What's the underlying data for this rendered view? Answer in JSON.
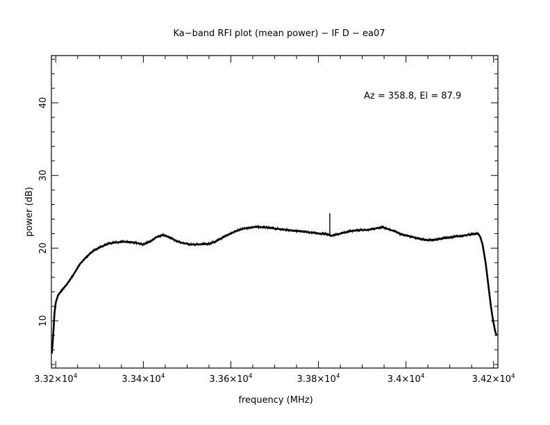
{
  "chart_data": {
    "type": "line",
    "title": "Ka−band RFI plot (mean power) − IF D − ea07",
    "xlabel": "frequency (MHz)",
    "ylabel": "power (dB)",
    "annotation": "Az = 358.8, El = 87.9",
    "xlim": [
      33190,
      34210
    ],
    "ylim": [
      3.5,
      46.5
    ],
    "x_ticks": [
      {
        "value": 33200,
        "mantissa": "3.32",
        "exp": "4"
      },
      {
        "value": 33400,
        "mantissa": "3.34",
        "exp": "4"
      },
      {
        "value": 33600,
        "mantissa": "3.36",
        "exp": "4"
      },
      {
        "value": 33800,
        "mantissa": "3.38",
        "exp": "4"
      },
      {
        "value": 34000,
        "mantissa": "3.4",
        "exp": "4"
      },
      {
        "value": 34200,
        "mantissa": "3.42",
        "exp": "4"
      }
    ],
    "x_tick_base": "×10",
    "y_ticks": [
      {
        "value": 10,
        "label": "10"
      },
      {
        "value": 20,
        "label": "20"
      },
      {
        "value": 30,
        "label": "30"
      },
      {
        "value": 40,
        "label": "40"
      }
    ],
    "series": [
      {
        "color": "#000000",
        "points": [
          [
            33191,
            5.5
          ],
          [
            33193,
            7.0
          ],
          [
            33195,
            9.0
          ],
          [
            33197,
            11.0
          ],
          [
            33200,
            12.5
          ],
          [
            33205,
            13.5
          ],
          [
            33215,
            14.3
          ],
          [
            33225,
            15.0
          ],
          [
            33240,
            16.3
          ],
          [
            33255,
            17.8
          ],
          [
            33270,
            18.8
          ],
          [
            33285,
            19.6
          ],
          [
            33300,
            20.1
          ],
          [
            33320,
            20.6
          ],
          [
            33340,
            20.8
          ],
          [
            33360,
            20.9
          ],
          [
            33380,
            20.8
          ],
          [
            33400,
            20.5
          ],
          [
            33415,
            20.9
          ],
          [
            33430,
            21.5
          ],
          [
            33445,
            21.8
          ],
          [
            33460,
            21.5
          ],
          [
            33475,
            21.0
          ],
          [
            33490,
            20.7
          ],
          [
            33510,
            20.5
          ],
          [
            33530,
            20.5
          ],
          [
            33550,
            20.6
          ],
          [
            33565,
            20.9
          ],
          [
            33580,
            21.4
          ],
          [
            33595,
            21.9
          ],
          [
            33610,
            22.3
          ],
          [
            33630,
            22.7
          ],
          [
            33650,
            22.9
          ],
          [
            33670,
            22.9
          ],
          [
            33700,
            22.7
          ],
          [
            33730,
            22.5
          ],
          [
            33760,
            22.3
          ],
          [
            33790,
            22.1
          ],
          [
            33805,
            22.0
          ],
          [
            33815,
            22.0
          ],
          [
            33825,
            21.8
          ],
          [
            33830,
            21.7
          ],
          [
            33850,
            22.0
          ],
          [
            33870,
            22.3
          ],
          [
            33890,
            22.5
          ],
          [
            33910,
            22.5
          ],
          [
            33930,
            22.7
          ],
          [
            33945,
            22.9
          ],
          [
            33960,
            22.6
          ],
          [
            33975,
            22.3
          ],
          [
            33990,
            21.9
          ],
          [
            34010,
            21.6
          ],
          [
            34030,
            21.3
          ],
          [
            34050,
            21.1
          ],
          [
            34070,
            21.2
          ],
          [
            34090,
            21.4
          ],
          [
            34110,
            21.6
          ],
          [
            34130,
            21.7
          ],
          [
            34150,
            21.9
          ],
          [
            34165,
            22.0
          ],
          [
            34170,
            21.5
          ],
          [
            34175,
            20.5
          ],
          [
            34182,
            18.0
          ],
          [
            34188,
            15.0
          ],
          [
            34194,
            12.0
          ],
          [
            34199,
            10.0
          ],
          [
            34204,
            8.5
          ],
          [
            34207,
            8.0
          ]
        ],
        "spike": {
          "x": 33826,
          "top": 24.8
        }
      }
    ]
  }
}
